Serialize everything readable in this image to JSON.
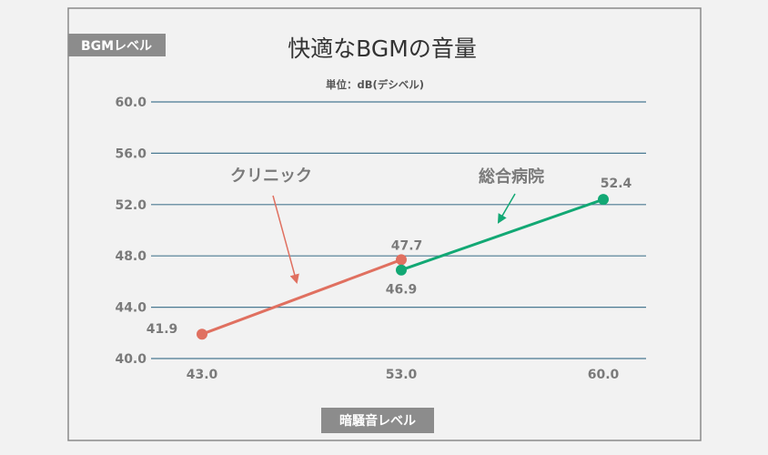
{
  "chart_data": {
    "type": "line",
    "title": "快適なBGMの音量",
    "subtitle": "単位：dB(デシベル)",
    "ylabel": "BGMレベル",
    "xlabel": "暗騒音レベル",
    "ylim": [
      40,
      60
    ],
    "yticks": [
      "40.0",
      "44.0",
      "48.0",
      "52.0",
      "56.0",
      "60.0"
    ],
    "xtick_values": [
      43,
      53,
      60
    ],
    "xticks": [
      "43.0",
      "53.0",
      "60.0"
    ],
    "grid": true,
    "series": [
      {
        "name": "クリニック",
        "color": "#e07060",
        "x": [
          43.0,
          53.0
        ],
        "y": [
          41.9,
          47.7
        ],
        "labels": [
          "41.9",
          "47.7"
        ]
      },
      {
        "name": "総合病院",
        "color": "#12a874",
        "x": [
          53.0,
          60.0
        ],
        "y": [
          46.9,
          52.4
        ],
        "labels": [
          "46.9",
          "52.4"
        ]
      }
    ]
  },
  "colors": {
    "background": "#f2f2f2",
    "frame": "#8a8a8a",
    "gridline": "#4a7a92",
    "label_box": "#8c8c8c",
    "label_box_text": "#ffffff",
    "tick_text": "#7a7a7a",
    "title_text": "#333333"
  }
}
